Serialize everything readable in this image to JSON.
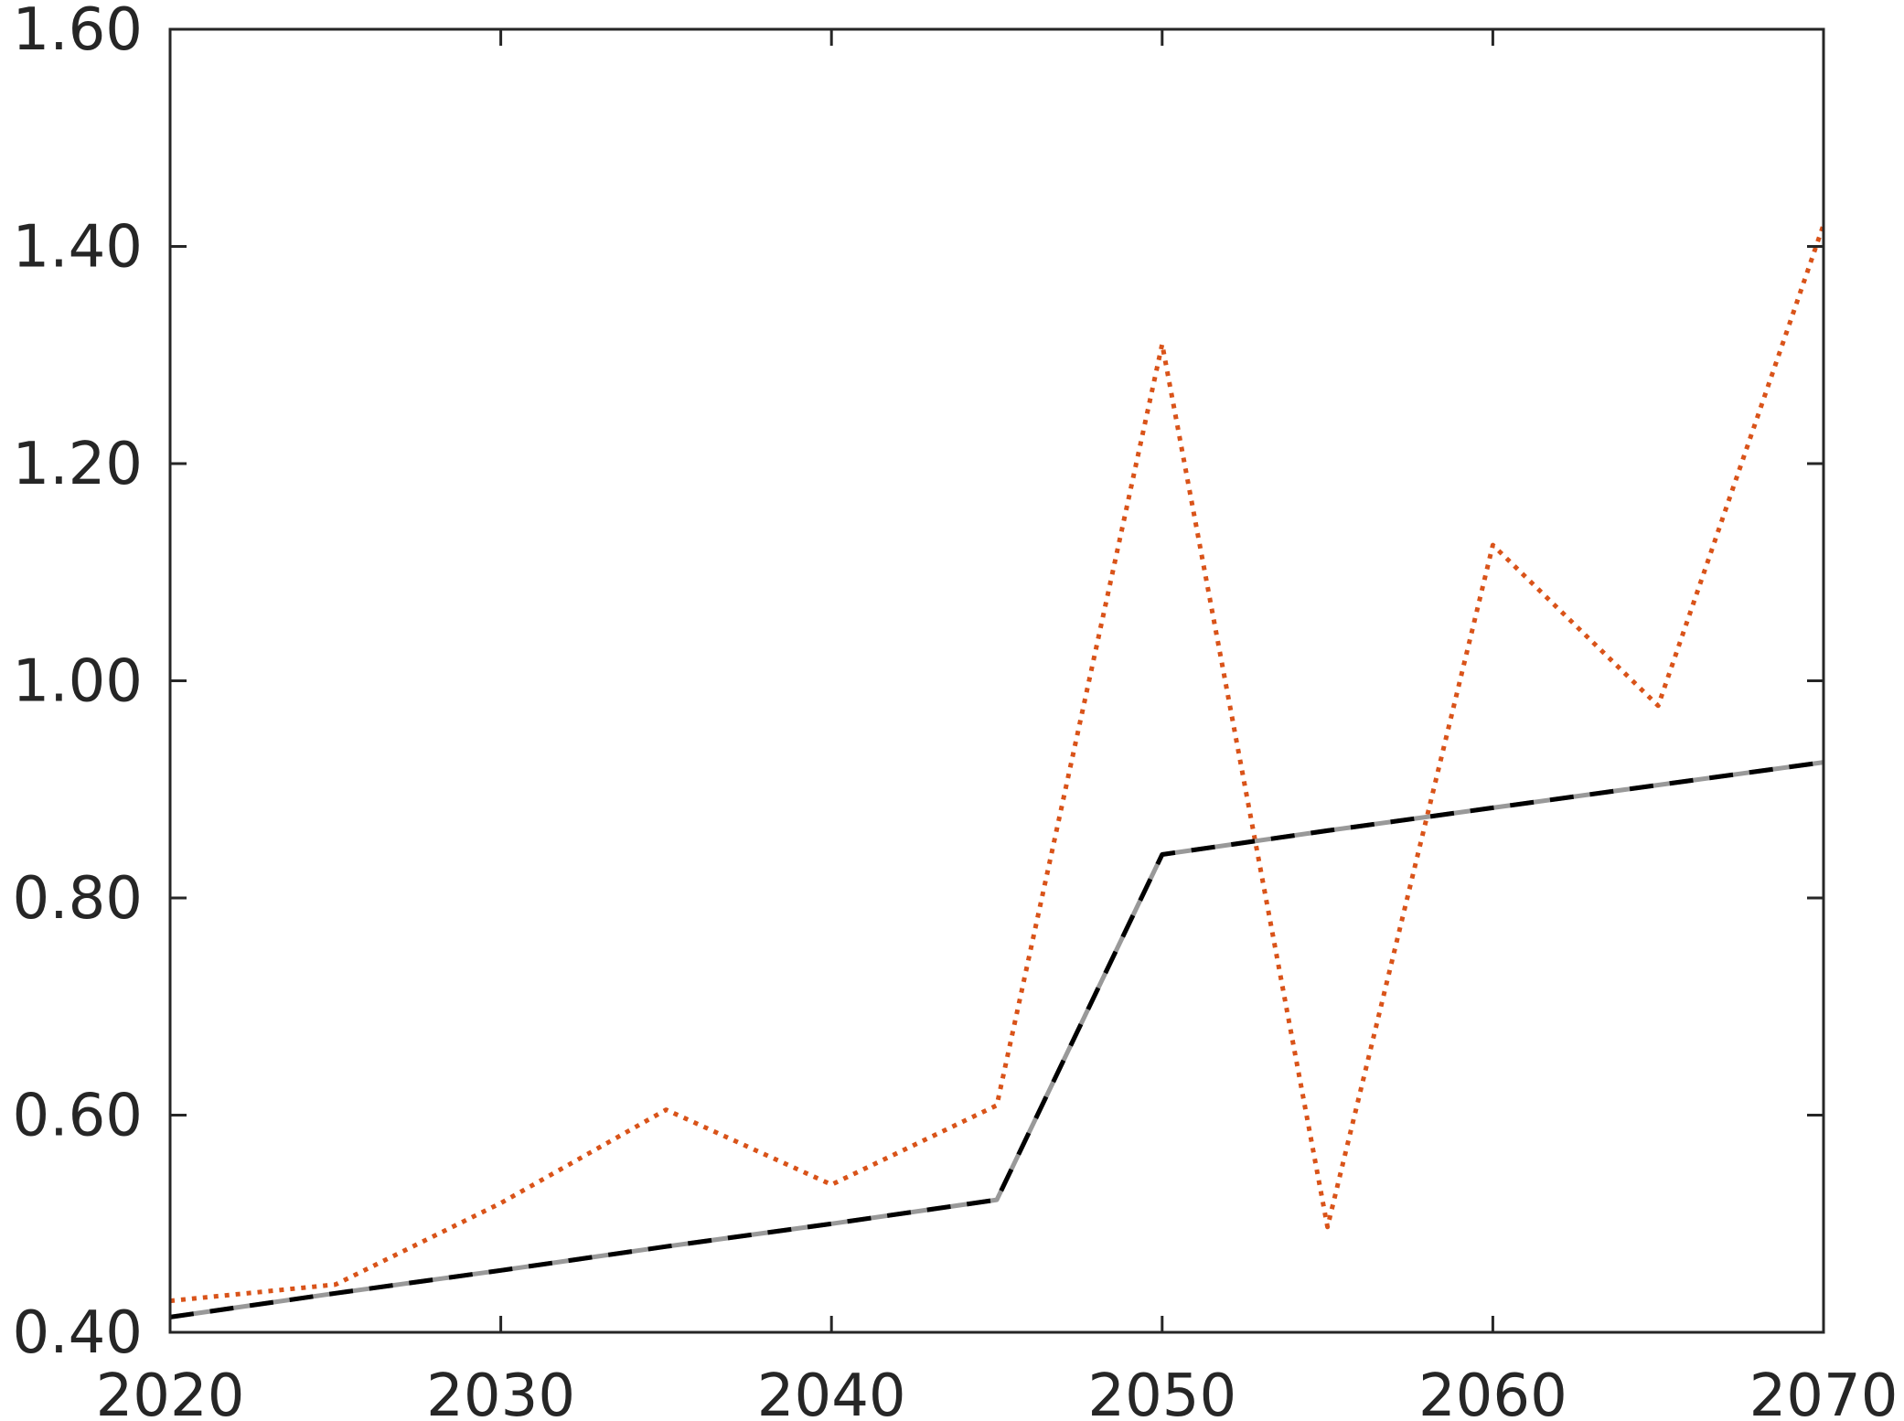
{
  "chart_data": {
    "type": "line",
    "title": "",
    "xlabel": "",
    "ylabel": "",
    "x": [
      2020,
      2025,
      2030,
      2035,
      2040,
      2045,
      2050,
      2055,
      2060,
      2065,
      2070
    ],
    "xlim": [
      2020,
      2070
    ],
    "ylim": [
      0.4,
      1.6
    ],
    "x_ticks": [
      "2020",
      "2030",
      "2040",
      "2050",
      "2060",
      "2070"
    ],
    "y_ticks": [
      "0.40",
      "0.60",
      "0.80",
      "1.00",
      "1.20",
      "1.40",
      "1.60"
    ],
    "grid": false,
    "series": [
      {
        "style": "dotted",
        "color": "#D95319",
        "values": [
          0.429,
          0.444,
          0.519,
          0.605,
          0.536,
          0.609,
          1.31,
          0.497,
          1.125,
          0.977,
          1.42
        ]
      },
      {
        "style": "solid",
        "color": "#999999",
        "values": [
          0.414,
          0.436,
          0.457,
          0.479,
          0.5,
          0.522,
          0.84,
          0.862,
          0.883,
          0.904,
          0.925
        ]
      },
      {
        "style": "dashed",
        "color": "#000000",
        "values": [
          0.414,
          0.436,
          0.457,
          0.479,
          0.5,
          0.522,
          0.84,
          0.862,
          0.883,
          0.904,
          0.925
        ]
      }
    ]
  }
}
